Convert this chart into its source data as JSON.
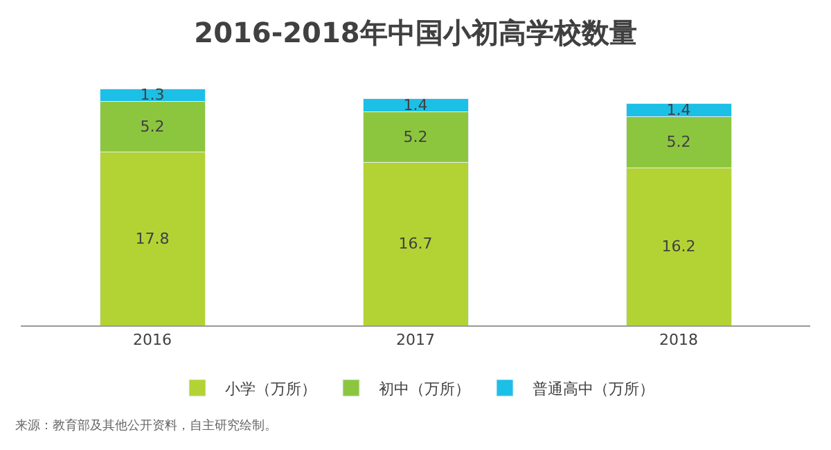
{
  "chart_data": {
    "type": "bar",
    "title": "2016-2018年中国小初高学校数量",
    "categories": [
      "2016",
      "2017",
      "2018"
    ],
    "stacked": true,
    "data_labels": true,
    "tick_labels": "x",
    "legend": "bottom",
    "series": [
      {
        "name": "小学（万所）",
        "color": "#b3d335",
        "values": [
          17.8,
          16.7,
          16.2
        ]
      },
      {
        "name": "初中（万所）",
        "color": "#8cc63f",
        "values": [
          5.2,
          5.2,
          5.2
        ]
      },
      {
        "name": "普通高中（万所）",
        "color": "#1cc0e6",
        "values": [
          1.3,
          1.4,
          1.4
        ]
      }
    ],
    "annotations": [
      "来源：教育部及其他公开资料，自主研究绘制。"
    ]
  }
}
